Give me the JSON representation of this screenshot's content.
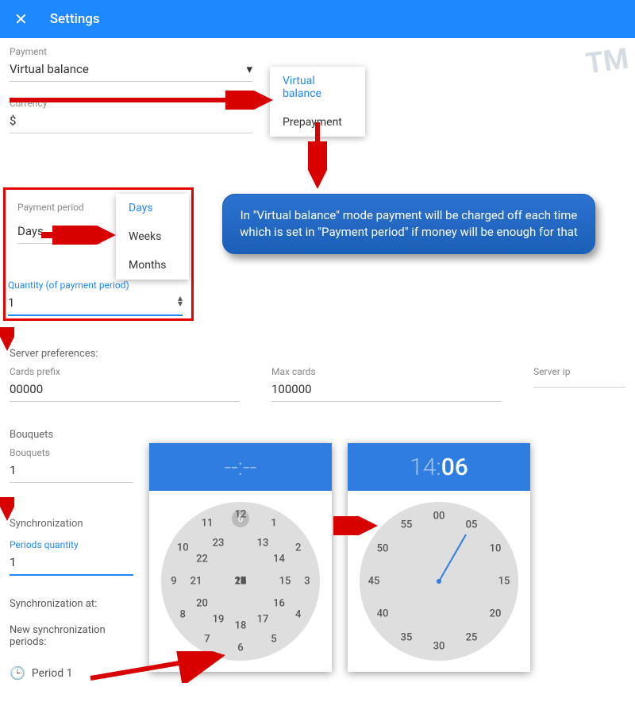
{
  "header": {
    "title": "Settings"
  },
  "payment": {
    "label": "Payment",
    "value": "Virtual balance",
    "options": [
      "Virtual balance",
      "Prepayment"
    ]
  },
  "currency": {
    "label": "Currency",
    "value": "$"
  },
  "period": {
    "label": "Payment period",
    "value": "Days",
    "options": [
      "Days",
      "Weeks",
      "Months"
    ],
    "qty_label": "Quantity (of payment period)",
    "qty": "1"
  },
  "callout": "In \"Virtual balance\" mode payment will be charged off each time which is set in \"Payment period\" if money will be enough for that",
  "server": {
    "title": "Server preferences:",
    "cards_prefix_label": "Cards prefix",
    "cards_prefix": "00000",
    "max_cards_label": "Max cards",
    "max_cards": "100000",
    "server_ip_label": "Server ip",
    "server_ip": ""
  },
  "bouquets": {
    "title": "Bouquets",
    "label": "Bouquets",
    "value": "1"
  },
  "sync": {
    "title": "Synchronization",
    "periods_qty_label": "Periods quantity",
    "periods_qty": "1",
    "at_label": "Synchronization at:",
    "new_periods_label": "New synchronization periods:",
    "period_field": "Period 1"
  },
  "clock1": {
    "display": "--:--",
    "bg": "#2f7de0",
    "outer": [
      "12",
      "1",
      "2",
      "3",
      "4",
      "5",
      "6",
      "7",
      "8",
      "9",
      "10",
      "11"
    ],
    "inner": [
      "0",
      "13",
      "14",
      "15",
      "16",
      "17",
      "18",
      "19",
      "20",
      "21",
      "22",
      "23"
    ]
  },
  "clock2": {
    "hour": "14",
    "minute": "06",
    "bg": "#2f7de0",
    "labels": [
      "00",
      "05",
      "10",
      "15",
      "20",
      "25",
      "30",
      "35",
      "40",
      "45",
      "50",
      "55"
    ],
    "hand_angle_deg": 30
  },
  "colors": {
    "primary": "#1e88ff",
    "arrow": "#d90000",
    "callout_bg": "#2668c4"
  },
  "watermark": "TM"
}
